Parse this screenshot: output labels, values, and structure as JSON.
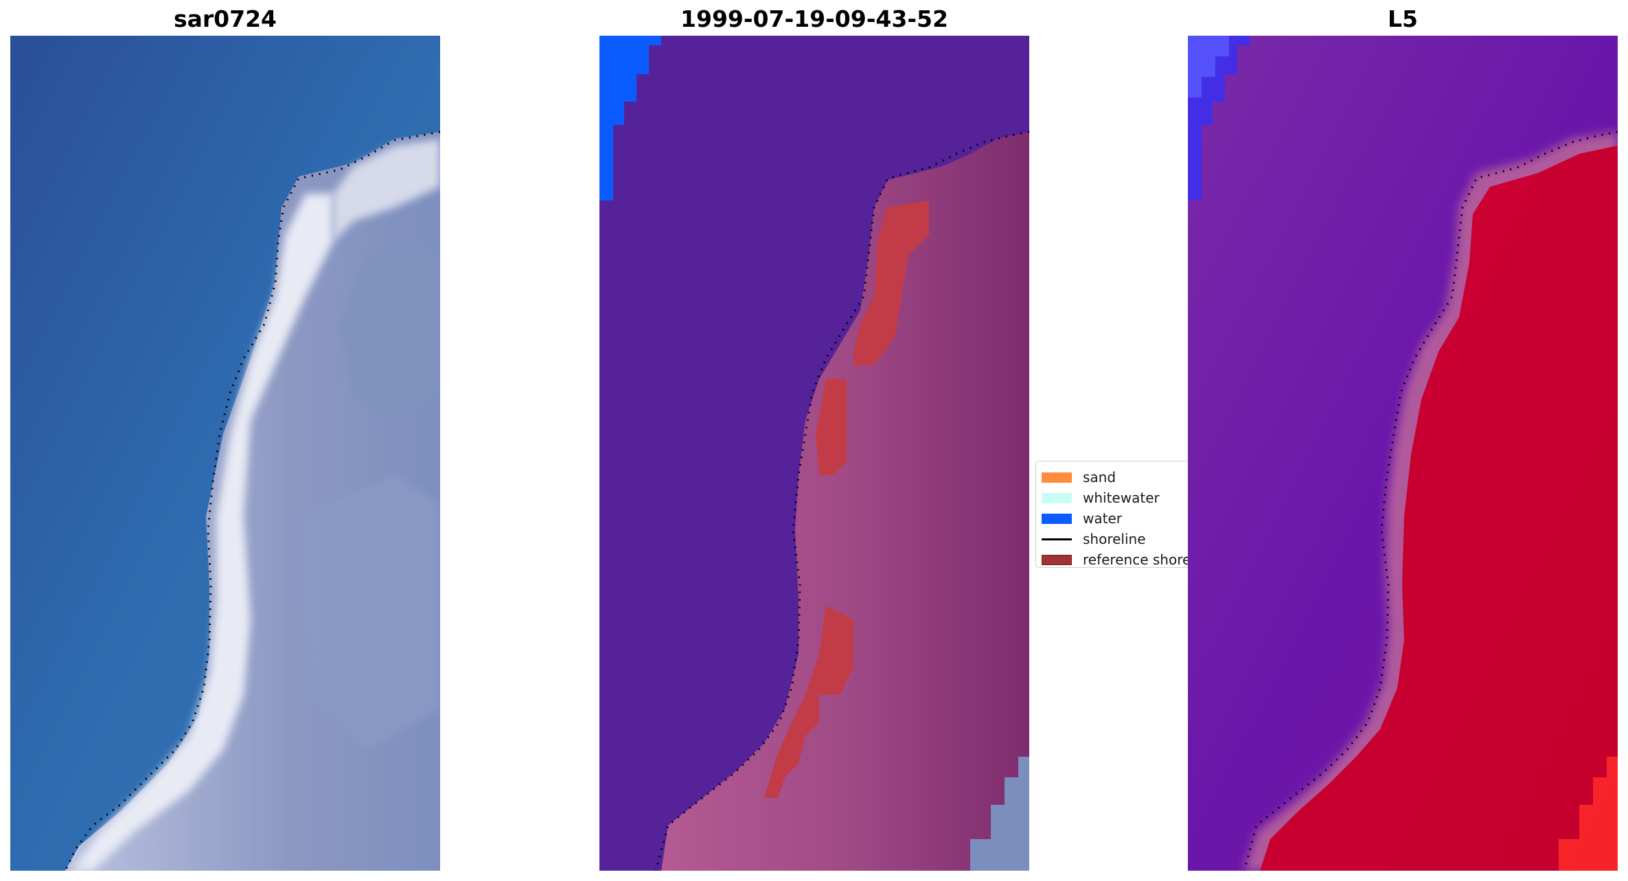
{
  "panels": {
    "rgb_title": "sar0724",
    "classification_title": "1999-07-19-09-43-52",
    "index_title": "L5"
  },
  "legend": {
    "items": [
      {
        "label": "sand",
        "color": "#ff8c3c",
        "kind": "patch"
      },
      {
        "label": "whitewater",
        "color": "#c8fcf7",
        "kind": "patch"
      },
      {
        "label": "water",
        "color": "#0a5cff",
        "kind": "patch"
      },
      {
        "label": "shoreline",
        "color": "#000000",
        "kind": "line"
      },
      {
        "label": "reference shoreline",
        "color": "#a33232",
        "kind": "patch"
      }
    ]
  },
  "colors": {
    "ocean_rgb": "#2f6aac",
    "surf_rgb": "#e4e6f2",
    "land_rgb": "#8894be",
    "classified_water_overlay": "#55229a",
    "land_overlay": "#a8538f",
    "reference_shoreline": "#c23c48",
    "water_class": "#0a5cff",
    "index_low": "#6a18a8",
    "index_high": "#c8002e"
  }
}
